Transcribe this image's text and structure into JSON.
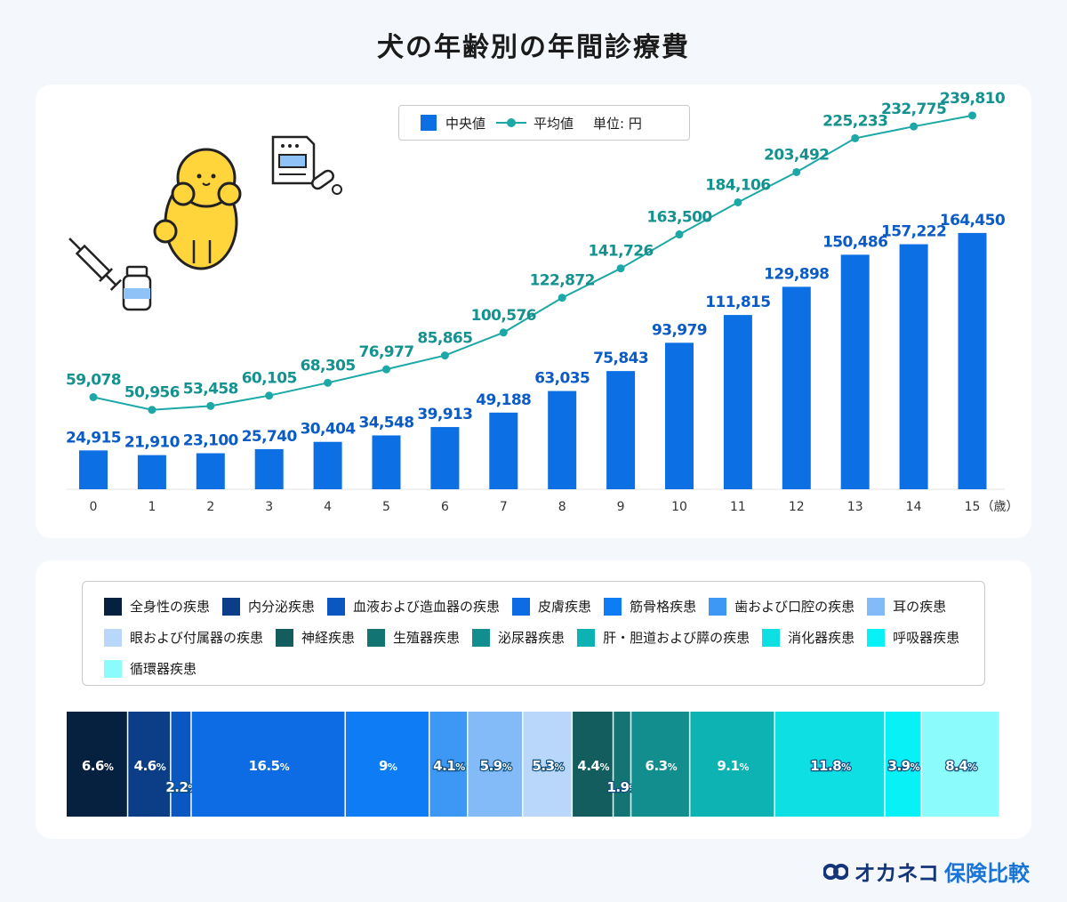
{
  "title": "犬の年齢別の年間診療費",
  "legend": {
    "median_label": "中央値",
    "mean_label": "平均値",
    "unit_label": "単位: 円"
  },
  "chart_data": [
    {
      "type": "bar",
      "categories": [
        "0",
        "1",
        "2",
        "3",
        "4",
        "5",
        "6",
        "7",
        "8",
        "9",
        "10",
        "11",
        "12",
        "13",
        "14",
        "15"
      ],
      "x_unit_label": "（歳）",
      "series": [
        {
          "name": "中央値",
          "type": "bar",
          "color": "#0c6fe3",
          "values": [
            24915,
            21910,
            23100,
            25740,
            30404,
            34548,
            39913,
            49188,
            63035,
            75843,
            93979,
            111815,
            129898,
            150486,
            157222,
            164450
          ]
        },
        {
          "name": "平均値",
          "type": "line",
          "color": "#1ca8a6",
          "values": [
            59078,
            50956,
            53458,
            60105,
            68305,
            76977,
            85865,
            100576,
            122872,
            141726,
            163500,
            184106,
            203492,
            225233,
            232775,
            239810
          ]
        }
      ],
      "value_labels": {
        "median": [
          "24,915",
          "21,910",
          "23,100",
          "25,740",
          "30,404",
          "34,548",
          "39,913",
          "49,188",
          "63,035",
          "75,843",
          "93,979",
          "111,815",
          "129,898",
          "150,486",
          "157,222",
          "164,450"
        ],
        "mean": [
          "59,078",
          "50,956",
          "53,458",
          "60,105",
          "68,305",
          "76,977",
          "85,865",
          "100,576",
          "122,872",
          "141,726",
          "163,500",
          "184,106",
          "203,492",
          "225,233",
          "232,775",
          "239,810"
        ]
      },
      "ylim": [
        0,
        250000
      ]
    },
    {
      "type": "bar",
      "subtype": "stacked-100",
      "segments": [
        {
          "name": "全身性の疾患",
          "value": 6.6,
          "label": "6.6",
          "color": "#06213f"
        },
        {
          "name": "内分泌疾患",
          "value": 4.6,
          "label": "4.6",
          "color": "#0c3e87"
        },
        {
          "name": "血液および造血器の疾患",
          "value": 2.2,
          "label": "2.2",
          "color": "#0a57c2"
        },
        {
          "name": "皮膚疾患",
          "value": 16.5,
          "label": "16.5",
          "color": "#0d6be3"
        },
        {
          "name": "筋骨格疾患",
          "value": 9,
          "label": "9",
          "color": "#0e7cf5"
        },
        {
          "name": "歯および口腔の疾患",
          "value": 4.1,
          "label": "4.1",
          "color": "#3d97f5"
        },
        {
          "name": "耳の疾患",
          "value": 5.9,
          "label": "5.9",
          "color": "#82bbf8"
        },
        {
          "name": "眼および付属器の疾患",
          "value": 5.3,
          "label": "5.3",
          "color": "#b8d7fb"
        },
        {
          "name": "神経疾患",
          "value": 4.4,
          "label": "4.4",
          "color": "#145d5f"
        },
        {
          "name": "生殖器疾患",
          "value": 1.9,
          "label": "1.9",
          "color": "#137474"
        },
        {
          "name": "泌尿器疾患",
          "value": 6.3,
          "label": "6.3",
          "color": "#128e8e"
        },
        {
          "name": "肝・胆道および膵の疾患",
          "value": 9.1,
          "label": "9.1",
          "color": "#0db3b3"
        },
        {
          "name": "消化器疾患",
          "value": 11.8,
          "label": "11.8",
          "color": "#0ddfe3"
        },
        {
          "name": "呼吸器疾患",
          "value": 3.9,
          "label": "3.9",
          "color": "#07f1f6"
        },
        {
          "name": "循環器疾患",
          "value": 8.4,
          "label": "8.4",
          "color": "#8cfbfb"
        }
      ],
      "percent_sign": "%"
    }
  ],
  "logo": {
    "brand_dark": "オカネコ",
    "brand_light": "保険比較"
  }
}
